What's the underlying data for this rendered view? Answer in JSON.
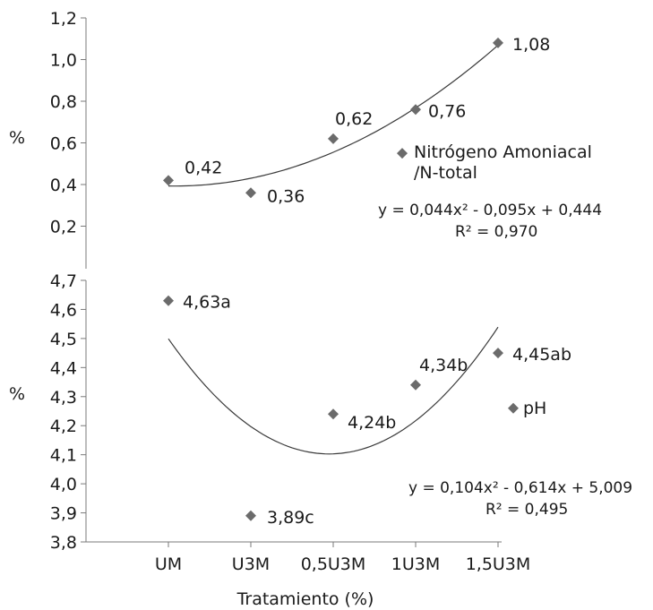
{
  "chart_data": [
    {
      "type": "scatter",
      "title": "",
      "ylabel": "%",
      "ylim": [
        0,
        1.2
      ],
      "yticks": [
        "0,2",
        "0,4",
        "0,6",
        "0,8",
        "1,0",
        "1,2"
      ],
      "categories": [
        "UM",
        "U3M",
        "0,5U3M",
        "1U3M",
        "1,5U3M"
      ],
      "series": [
        {
          "name": "Nitrógeno Amoniacal /N-total",
          "values": [
            0.42,
            0.36,
            0.62,
            0.76,
            1.08
          ],
          "labels": [
            "0,42",
            "0,36",
            "0,62",
            "0,76",
            "1,08"
          ]
        }
      ],
      "legend_lines": [
        "Nitrógeno Amoniacal",
        "/N-total"
      ],
      "trendline": {
        "coefficients": [
          0.044,
          -0.095,
          0.444
        ],
        "equation": "y = 0,044x² - 0,095x + 0,444",
        "r2": "R² = 0,970"
      },
      "grid": false
    },
    {
      "type": "scatter",
      "title": "",
      "ylabel": "%",
      "ylim": [
        3.8,
        4.7
      ],
      "yticks": [
        "3,8",
        "3,9",
        "4,0",
        "4,1",
        "4,2",
        "4,3",
        "4,4",
        "4,5",
        "4,6",
        "4,7"
      ],
      "categories": [
        "UM",
        "U3M",
        "0,5U3M",
        "1U3M",
        "1,5U3M"
      ],
      "series": [
        {
          "name": "pH",
          "values": [
            4.63,
            3.89,
            4.24,
            4.34,
            4.45
          ],
          "labels": [
            "4,63a",
            "3,89c",
            "4,24b",
            "4,34b",
            "4,45ab"
          ]
        }
      ],
      "legend_lines": [
        "pH"
      ],
      "trendline": {
        "coefficients": [
          0.104,
          -0.614,
          5.009
        ],
        "equation": "y = 0,104x² - 0,614x + 5,009",
        "r2": "R² = 0,495"
      },
      "grid": false
    }
  ],
  "xlabel": "Tratamiento (%)",
  "colors": {
    "marker": "#6b6b6b",
    "trend": "#3a3a3a",
    "axis": "#7a7a7a"
  }
}
